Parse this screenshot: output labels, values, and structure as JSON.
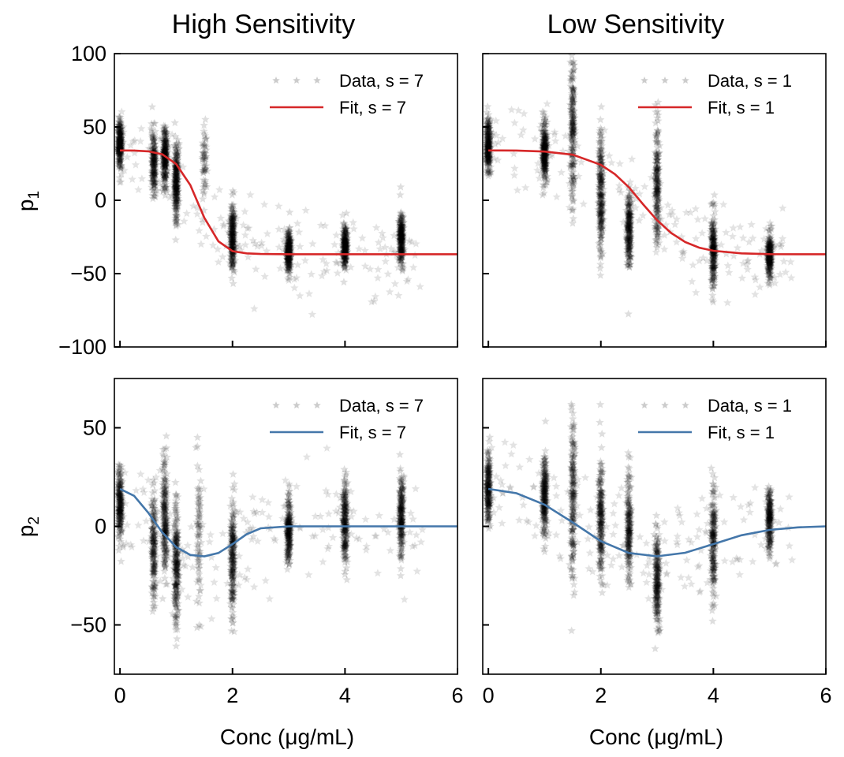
{
  "column_titles": [
    "High Sensitivity",
    "Low Sensitivity"
  ],
  "xlabel": "Conc (μg/mL)",
  "ylabels": {
    "top": {
      "base": "p",
      "sub": "1"
    },
    "bottom": {
      "base": "p",
      "sub": "2"
    }
  },
  "colors": {
    "fit_p1": "#d62728",
    "fit_p2": "#4477aa",
    "data": "#000000"
  },
  "chart_data": [
    {
      "id": "p1-high",
      "type": "scatter",
      "title": "High Sensitivity",
      "ylabel": "p1",
      "xlabel": "",
      "xlim": [
        -0.1,
        6
      ],
      "ylim": [
        -100,
        100
      ],
      "xticks": [
        0,
        2,
        4,
        6
      ],
      "yticks": [
        100,
        50,
        0,
        -50,
        -100
      ],
      "xtick_labels": [],
      "ytick_labels": [
        "100",
        "50",
        "0",
        "−50",
        "−100"
      ],
      "legend": {
        "position": "top-right",
        "entries": [
          "Data, s = 7",
          "Fit, s = 7"
        ]
      },
      "series": [
        {
          "name": "Data, s = 7",
          "kind": "scatter-cloud",
          "marker": "star",
          "groups": [
            {
              "x": 0,
              "mean": 38,
              "sd": 8,
              "n": 260
            },
            {
              "x": 0.6,
              "mean": 25,
              "sd": 11,
              "n": 200
            },
            {
              "x": 0.8,
              "mean": 30,
              "sd": 10,
              "n": 260
            },
            {
              "x": 1,
              "mean": 12,
              "sd": 13,
              "n": 280
            },
            {
              "x": 1.5,
              "mean": 25,
              "sd": 12,
              "n": 60
            },
            {
              "x": 2,
              "mean": -25,
              "sd": 12,
              "n": 260
            },
            {
              "x": 3,
              "mean": -35,
              "sd": 7,
              "n": 260
            },
            {
              "x": 4,
              "mean": -32,
              "sd": 7,
              "n": 240
            },
            {
              "x": 5,
              "mean": -25,
              "sd": 9,
              "n": 260
            }
          ]
        },
        {
          "name": "Fit, s = 7",
          "kind": "line",
          "x": [
            0,
            0.25,
            0.5,
            0.75,
            1,
            1.25,
            1.5,
            1.75,
            2,
            2.25,
            2.5,
            3,
            3.5,
            4,
            4.5,
            5,
            5.5,
            6
          ],
          "y": [
            34,
            33.9,
            33.4,
            31.4,
            24.7,
            10.3,
            -12,
            -28,
            -34.7,
            -36.2,
            -36.6,
            -36.8,
            -36.8,
            -36.8,
            -36.8,
            -36.8,
            -36.8,
            -36.8
          ]
        }
      ]
    },
    {
      "id": "p1-low",
      "type": "scatter",
      "title": "Low Sensitivity",
      "ylabel": "",
      "xlabel": "",
      "xlim": [
        -0.1,
        6
      ],
      "ylim": [
        -100,
        100
      ],
      "xticks": [
        0,
        2,
        4,
        6
      ],
      "yticks": [
        100,
        50,
        0,
        -50,
        -100
      ],
      "xtick_labels": [],
      "ytick_labels": [],
      "legend": {
        "position": "top-right",
        "entries": [
          "Data, s = 1",
          "Fit, s = 1"
        ]
      },
      "series": [
        {
          "name": "Data, s = 1",
          "kind": "scatter-cloud",
          "marker": "star",
          "groups": [
            {
              "x": 0,
              "mean": 38,
              "sd": 9,
              "n": 260
            },
            {
              "x": 1,
              "mean": 32,
              "sd": 10,
              "n": 280
            },
            {
              "x": 1.5,
              "mean": 45,
              "sd": 25,
              "n": 220
            },
            {
              "x": 2,
              "mean": 5,
              "sd": 22,
              "n": 260
            },
            {
              "x": 2.5,
              "mean": -20,
              "sd": 12,
              "n": 240
            },
            {
              "x": 3,
              "mean": 10,
              "sd": 20,
              "n": 220
            },
            {
              "x": 4,
              "mean": -35,
              "sd": 13,
              "n": 240
            },
            {
              "x": 5,
              "mean": -38,
              "sd": 7,
              "n": 240
            }
          ]
        },
        {
          "name": "Fit, s = 1",
          "kind": "line",
          "x": [
            0,
            0.5,
            1,
            1.5,
            2,
            2.25,
            2.5,
            2.75,
            3,
            3.25,
            3.5,
            3.75,
            4,
            4.5,
            5,
            5.5,
            6
          ],
          "y": [
            34,
            33.9,
            33.2,
            31.1,
            24.2,
            17.8,
            8.8,
            -2.7,
            -13.6,
            -22.3,
            -28.5,
            -32.3,
            -34.4,
            -36.2,
            -36.7,
            -36.8,
            -36.8
          ]
        }
      ]
    },
    {
      "id": "p2-high",
      "type": "scatter",
      "title": "",
      "ylabel": "p2",
      "xlabel": "Conc (μg/mL)",
      "xlim": [
        -0.1,
        6
      ],
      "ylim": [
        -75,
        75
      ],
      "xticks": [
        0,
        2,
        4,
        6
      ],
      "yticks": [
        50,
        0,
        -50
      ],
      "xtick_labels": [
        "0",
        "2",
        "4",
        "6"
      ],
      "ytick_labels": [
        "50",
        "0",
        "−50"
      ],
      "legend": {
        "position": "top-right",
        "entries": [
          "Data, s = 7",
          "Fit, s = 7"
        ]
      },
      "series": [
        {
          "name": "Data, s = 7",
          "kind": "scatter-cloud",
          "marker": "star",
          "groups": [
            {
              "x": 0,
              "mean": 10,
              "sd": 9,
              "n": 240
            },
            {
              "x": 0.6,
              "mean": -10,
              "sd": 14,
              "n": 200
            },
            {
              "x": 0.8,
              "mean": 5,
              "sd": 15,
              "n": 240
            },
            {
              "x": 1,
              "mean": -20,
              "sd": 14,
              "n": 260
            },
            {
              "x": 1.4,
              "mean": -5,
              "sd": 18,
              "n": 80
            },
            {
              "x": 2,
              "mean": -15,
              "sd": 15,
              "n": 240
            },
            {
              "x": 3,
              "mean": -2,
              "sd": 8,
              "n": 240
            },
            {
              "x": 4,
              "mean": 2,
              "sd": 10,
              "n": 240
            },
            {
              "x": 5,
              "mean": 5,
              "sd": 10,
              "n": 240
            }
          ]
        },
        {
          "name": "Fit, s = 7",
          "kind": "line",
          "x": [
            0,
            0.25,
            0.5,
            0.75,
            1,
            1.25,
            1.5,
            1.75,
            2,
            2.25,
            2.5,
            3,
            3.5,
            4,
            5,
            6
          ],
          "y": [
            19,
            15.5,
            7,
            -3,
            -10.5,
            -14.5,
            -15.2,
            -13.5,
            -9,
            -4,
            -1,
            0,
            0,
            0,
            0,
            0
          ]
        }
      ]
    },
    {
      "id": "p2-low",
      "type": "scatter",
      "title": "",
      "ylabel": "",
      "xlabel": "Conc (μg/mL)",
      "xlim": [
        -0.1,
        6
      ],
      "ylim": [
        -75,
        75
      ],
      "xticks": [
        0,
        2,
        4,
        6
      ],
      "yticks": [
        50,
        0,
        -50
      ],
      "xtick_labels": [
        "0",
        "2",
        "4",
        "6"
      ],
      "ytick_labels": [],
      "legend": {
        "position": "top-right",
        "entries": [
          "Data, s = 1",
          "Fit, s = 1"
        ]
      },
      "series": [
        {
          "name": "Data, s = 1",
          "kind": "scatter-cloud",
          "marker": "star",
          "groups": [
            {
              "x": 0,
              "mean": 20,
              "sd": 10,
              "n": 240
            },
            {
              "x": 1,
              "mean": 15,
              "sd": 10,
              "n": 260
            },
            {
              "x": 1.5,
              "mean": 15,
              "sd": 20,
              "n": 220
            },
            {
              "x": 2,
              "mean": 5,
              "sd": 15,
              "n": 240
            },
            {
              "x": 2.5,
              "mean": 0,
              "sd": 13,
              "n": 220
            },
            {
              "x": 3,
              "mean": -28,
              "sd": 12,
              "n": 240
            },
            {
              "x": 4,
              "mean": -10,
              "sd": 14,
              "n": 220
            },
            {
              "x": 5,
              "mean": 3,
              "sd": 8,
              "n": 220
            }
          ]
        },
        {
          "name": "Fit, s = 1",
          "kind": "line",
          "x": [
            0,
            0.5,
            1,
            1.5,
            2,
            2.5,
            3,
            3.5,
            4,
            4.5,
            5,
            5.5,
            6
          ],
          "y": [
            19,
            16.8,
            11,
            2,
            -7.5,
            -13.5,
            -15.2,
            -13.4,
            -9,
            -4.5,
            -1.8,
            -0.5,
            0
          ]
        }
      ]
    }
  ]
}
